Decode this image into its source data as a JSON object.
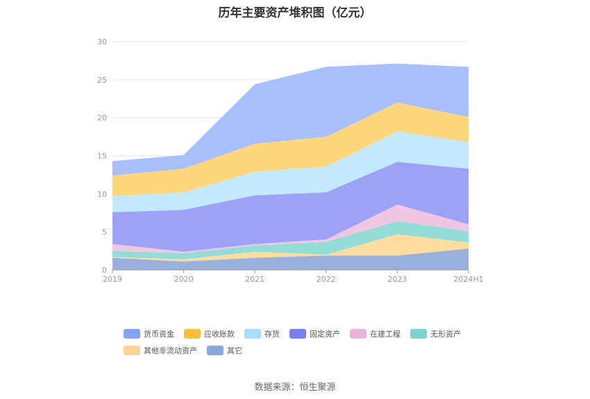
{
  "chart_data": {
    "type": "area",
    "stacked": true,
    "title": "历年主要资产堆积图（亿元）",
    "x": [
      "2019",
      "2020",
      "2021",
      "2022",
      "2023",
      "2024H1"
    ],
    "ylim": [
      0,
      30
    ],
    "yticks": [
      0,
      5,
      10,
      15,
      20,
      25,
      30
    ],
    "grid": true,
    "legend_position": "bottom",
    "series": [
      {
        "name": "其它",
        "color": "#97b0dc",
        "values": [
          1.6,
          1.1,
          1.6,
          1.9,
          1.9,
          2.8
        ]
      },
      {
        "name": "其他非流动资产",
        "color": "#fedb9e",
        "values": [
          0.1,
          0.3,
          0.8,
          0.1,
          2.8,
          0.8
        ]
      },
      {
        "name": "无形资产",
        "color": "#93dcd8",
        "values": [
          0.8,
          0.8,
          0.8,
          1.7,
          1.7,
          1.5
        ]
      },
      {
        "name": "在建工程",
        "color": "#f1c6e2",
        "values": [
          0.9,
          0.2,
          0.2,
          0.3,
          2.2,
          0.9
        ]
      },
      {
        "name": "固定资产",
        "color": "#9ea2f6",
        "values": [
          4.2,
          5.5,
          6.4,
          6.2,
          5.6,
          7.3
        ]
      },
      {
        "name": "存货",
        "color": "#c2e9fd",
        "values": [
          2.1,
          2.3,
          3.1,
          3.4,
          4.0,
          3.5
        ]
      },
      {
        "name": "应收账款",
        "color": "#fed77c",
        "values": [
          2.7,
          3.1,
          3.7,
          3.9,
          3.8,
          3.3
        ]
      },
      {
        "name": "货币资金",
        "color": "#a8bffc",
        "values": [
          1.9,
          1.8,
          7.8,
          9.2,
          5.1,
          6.6
        ]
      }
    ],
    "legend": [
      {
        "name": "货币资金",
        "color": "#86a4f6"
      },
      {
        "name": "应收账款",
        "color": "#fbbf3c"
      },
      {
        "name": "存货",
        "color": "#a6dffb"
      },
      {
        "name": "固定资产",
        "color": "#7b7ff0"
      },
      {
        "name": "在建工程",
        "color": "#eab5dc"
      },
      {
        "name": "无形资产",
        "color": "#7dd3ce"
      },
      {
        "name": "其他非流动资产",
        "color": "#fdd49a"
      },
      {
        "name": "其它",
        "color": "#8aa8d8"
      }
    ]
  },
  "source": "数据来源：恒生聚源"
}
